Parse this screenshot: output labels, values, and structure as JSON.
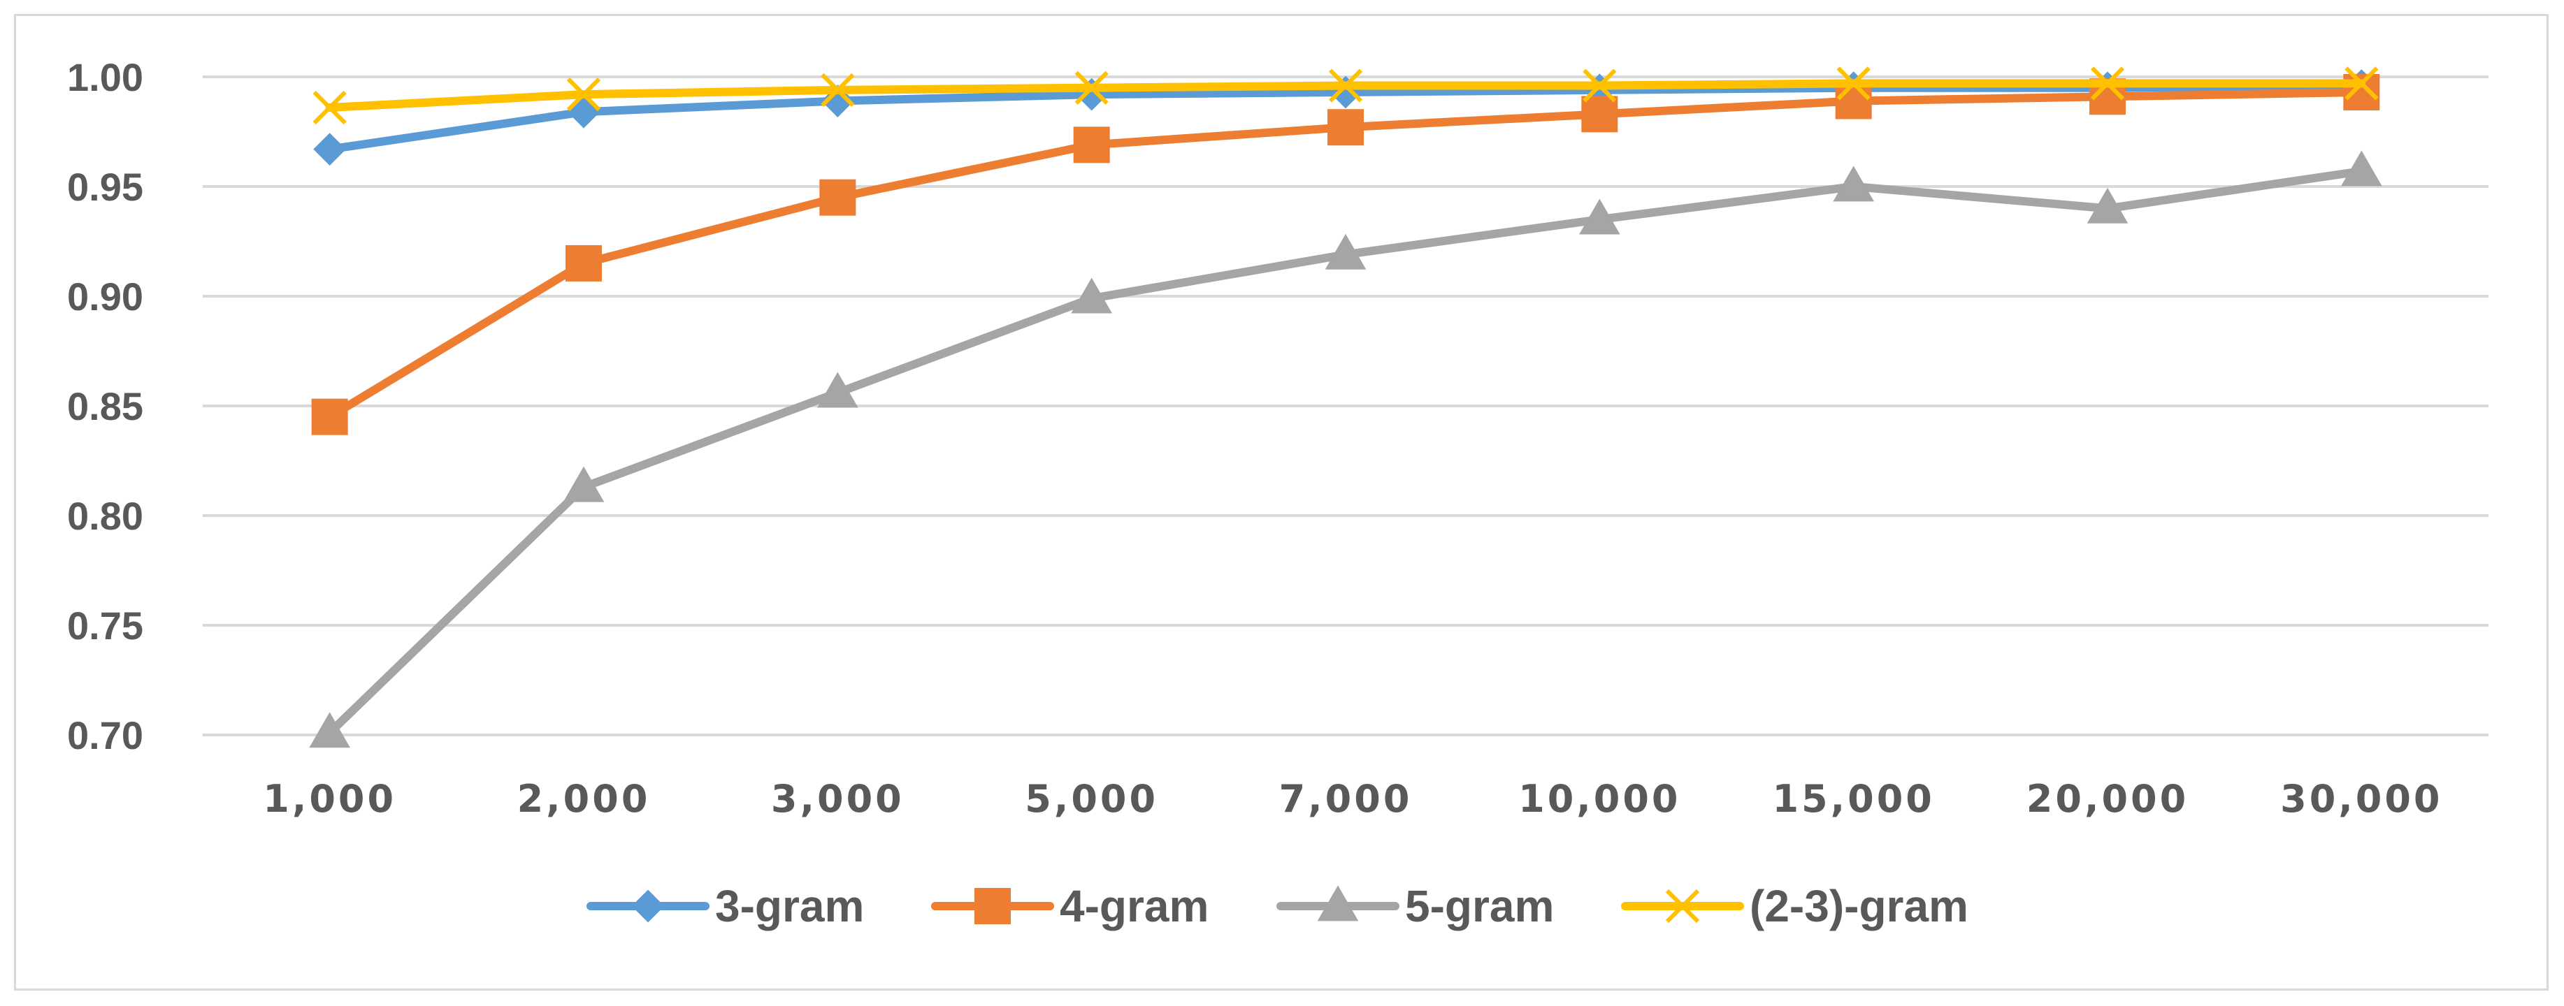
{
  "chart_data": {
    "type": "line",
    "title": "",
    "xlabel": "",
    "ylabel": "",
    "categories": [
      "1,000",
      "2,000",
      "3,000",
      "5,000",
      "7,000",
      "10,000",
      "15,000",
      "20,000",
      "30,000"
    ],
    "ylim": [
      0.7,
      1.0
    ],
    "yticks": [
      "0.70",
      "0.75",
      "0.80",
      "0.85",
      "0.90",
      "0.95",
      "1.00"
    ],
    "grid": true,
    "legend_position": "bottom",
    "series": [
      {
        "name": "3-gram",
        "color": "#5b9bd5",
        "marker": "diamond",
        "values": [
          0.967,
          0.984,
          0.989,
          0.992,
          0.993,
          0.994,
          0.995,
          0.995,
          0.996
        ]
      },
      {
        "name": "4-gram",
        "color": "#ed7d31",
        "marker": "square",
        "values": [
          0.845,
          0.915,
          0.945,
          0.969,
          0.977,
          0.983,
          0.989,
          0.991,
          0.993
        ]
      },
      {
        "name": "5-gram",
        "color": "#a5a5a5",
        "marker": "triangle",
        "values": [
          0.701,
          0.813,
          0.856,
          0.899,
          0.919,
          0.935,
          0.95,
          0.94,
          0.957
        ]
      },
      {
        "name": "(2-3)-gram",
        "color": "#ffc000",
        "marker": "x",
        "values": [
          0.986,
          0.992,
          0.994,
          0.995,
          0.996,
          0.996,
          0.997,
          0.997,
          0.997
        ]
      }
    ]
  }
}
